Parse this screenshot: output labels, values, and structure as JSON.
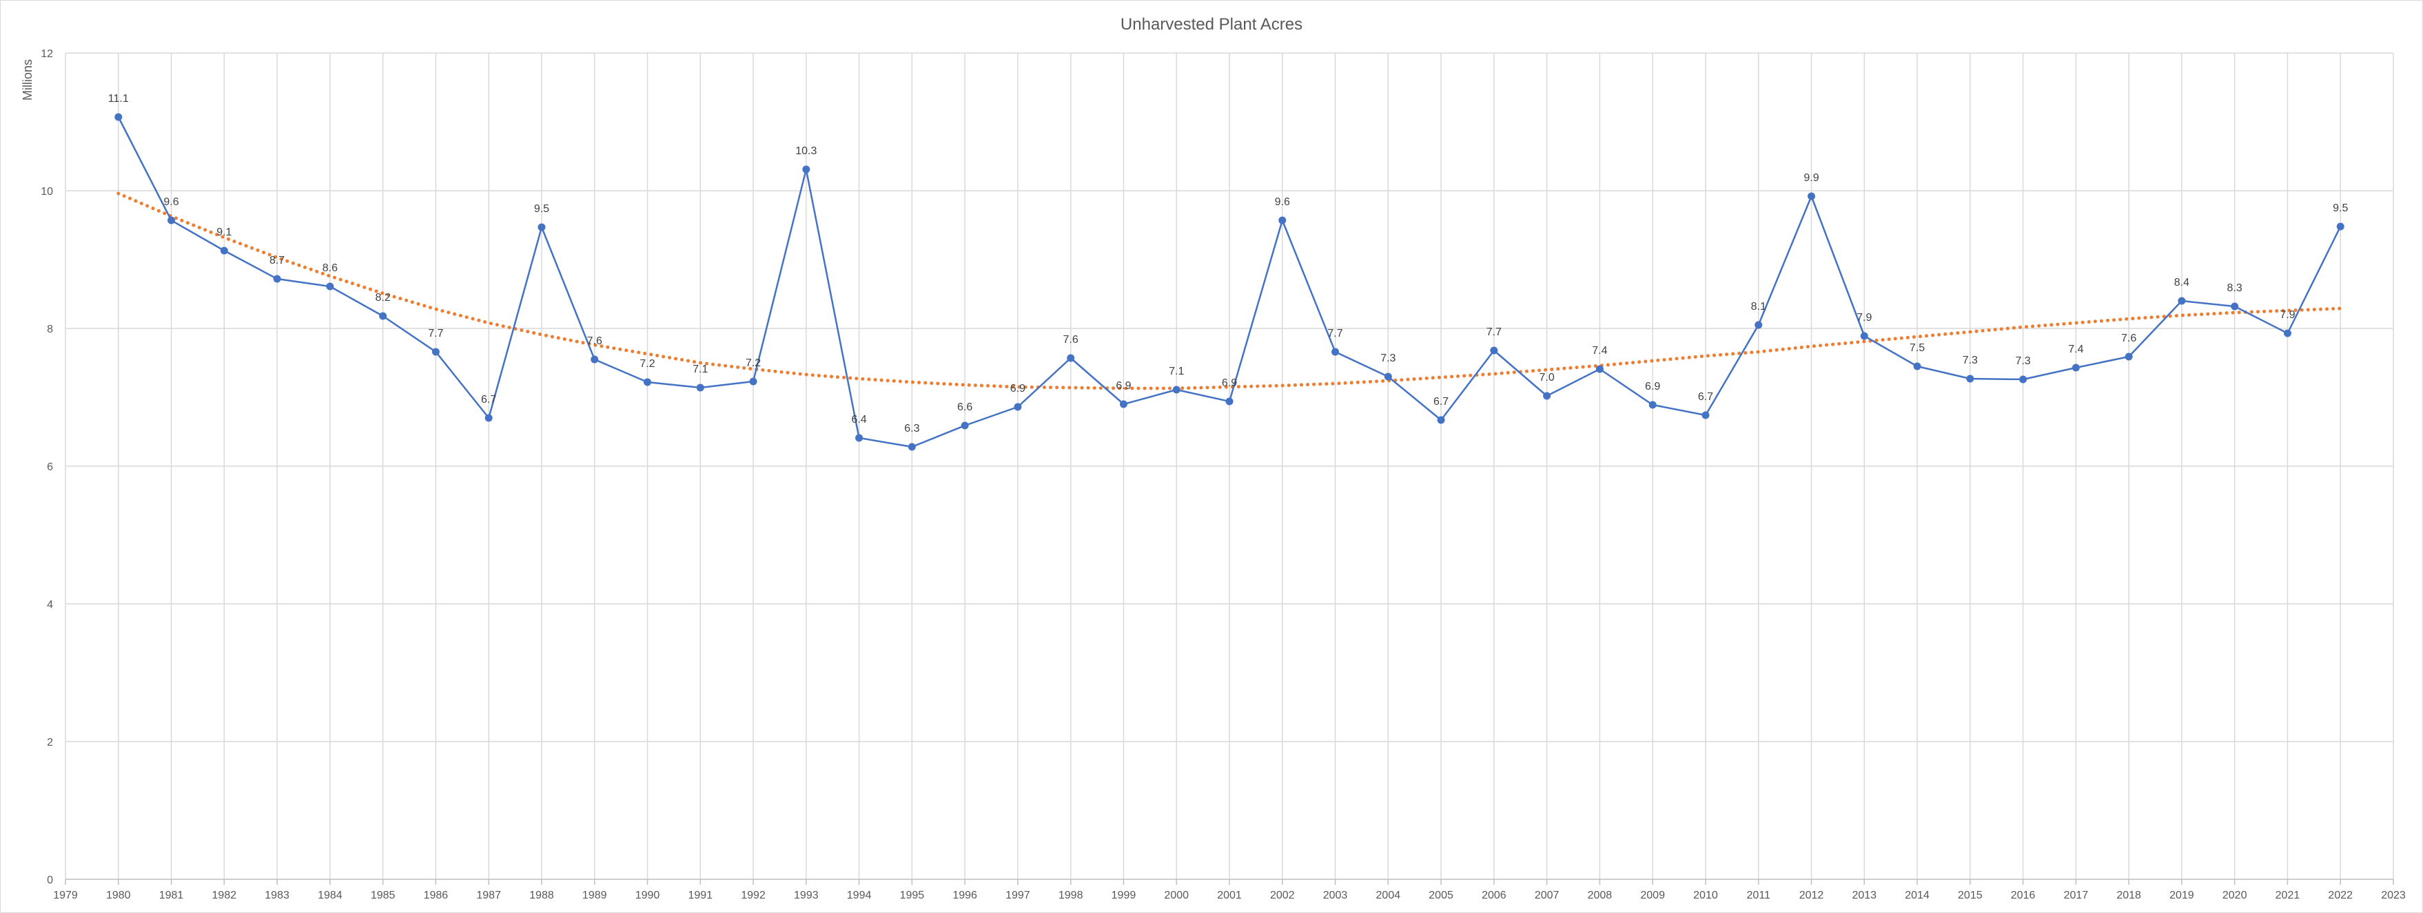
{
  "chart_data": {
    "type": "line",
    "title": "Unharvested Plant Acres",
    "ylabel": "Millions",
    "xlabel": "",
    "xlim": [
      1979,
      2023
    ],
    "ylim": [
      0,
      12
    ],
    "x_ticks": [
      1979,
      1980,
      1981,
      1982,
      1983,
      1984,
      1985,
      1986,
      1987,
      1988,
      1989,
      1990,
      1991,
      1992,
      1993,
      1994,
      1995,
      1996,
      1997,
      1998,
      1999,
      2000,
      2001,
      2002,
      2003,
      2004,
      2005,
      2006,
      2007,
      2008,
      2009,
      2010,
      2011,
      2012,
      2013,
      2014,
      2015,
      2016,
      2017,
      2018,
      2019,
      2020,
      2021,
      2022,
      2023
    ],
    "y_ticks": [
      0,
      2,
      4,
      6,
      8,
      10,
      12
    ],
    "grid": true,
    "legend": "none",
    "x": [
      1980,
      1981,
      1982,
      1983,
      1984,
      1985,
      1986,
      1987,
      1988,
      1989,
      1990,
      1991,
      1992,
      1993,
      1994,
      1995,
      1996,
      1997,
      1998,
      1999,
      2000,
      2001,
      2002,
      2003,
      2004,
      2005,
      2006,
      2007,
      2008,
      2009,
      2010,
      2011,
      2012,
      2013,
      2014,
      2015,
      2016,
      2017,
      2018,
      2019,
      2020,
      2021,
      2022
    ],
    "series": [
      {
        "color": "#4472c4",
        "values": [
          11.07,
          9.57,
          9.13,
          8.72,
          8.61,
          8.18,
          7.66,
          6.7,
          9.47,
          7.55,
          7.22,
          7.14,
          7.23,
          10.31,
          6.41,
          6.28,
          6.59,
          6.86,
          7.57,
          6.9,
          7.11,
          6.94,
          9.57,
          7.66,
          7.3,
          6.67,
          7.68,
          7.02,
          7.41,
          6.89,
          6.74,
          8.05,
          9.92,
          7.89,
          7.45,
          7.27,
          7.26,
          7.43,
          7.59,
          8.4,
          8.32,
          7.93,
          9.48
        ],
        "labels": [
          "11.1",
          "9.6",
          "9.1",
          "8.7",
          "8.6",
          "8.2",
          "7.7",
          "6.7",
          "9.5",
          "7.6",
          "7.2",
          "7.1",
          "7.2",
          "10.3",
          "6.4",
          "6.3",
          "6.6",
          "6.9",
          "7.6",
          "6.9",
          "7.1",
          "6.9",
          "9.6",
          "7.7",
          "7.3",
          "6.7",
          "7.7",
          "7.0",
          "7.4",
          "6.9",
          "6.7",
          "8.1",
          "9.9",
          "7.9",
          "7.5",
          "7.3",
          "7.3",
          "7.4",
          "7.6",
          "8.4",
          "8.3",
          "7.9",
          "9.5"
        ]
      }
    ],
    "trendline": {
      "style": "dotted",
      "color": "#ed7d31",
      "type": "polynomial",
      "values": [
        9.96,
        9.63,
        9.32,
        9.03,
        8.76,
        8.51,
        8.28,
        8.08,
        7.91,
        7.76,
        7.63,
        7.5,
        7.41,
        7.33,
        7.27,
        7.22,
        7.18,
        7.15,
        7.14,
        7.13,
        7.13,
        7.15,
        7.17,
        7.2,
        7.24,
        7.29,
        7.34,
        7.4,
        7.46,
        7.53,
        7.6,
        7.66,
        7.74,
        7.81,
        7.88,
        7.95,
        8.02,
        8.08,
        8.14,
        8.19,
        8.23,
        8.26,
        8.29
      ]
    }
  }
}
